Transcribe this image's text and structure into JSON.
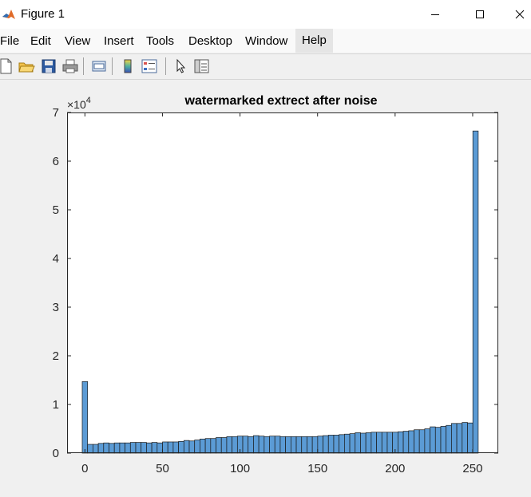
{
  "window": {
    "title": "Figure 1"
  },
  "menu": {
    "file": "File",
    "edit": "Edit",
    "view": "View",
    "insert": "Insert",
    "tools": "Tools",
    "desktop": "Desktop",
    "window": "Window",
    "help": "Help"
  },
  "colors": {
    "bar_fill": "#5b9bd5",
    "bar_edge": "#1a1a1a",
    "axes_bg": "#ffffff",
    "figure_bg": "#f0f0f0"
  },
  "chart_data": {
    "type": "bar",
    "title": "watermarked extrect after noise",
    "xlabel": "",
    "ylabel": "",
    "y_exponent_label": "×10",
    "y_exponent": "4",
    "xlim": [
      -11.5,
      266.5
    ],
    "ylim": [
      0,
      70000
    ],
    "x_ticks": [
      0,
      50,
      100,
      150,
      200,
      250
    ],
    "y_ticks": [
      0,
      10000,
      20000,
      30000,
      40000,
      50000,
      60000,
      70000
    ],
    "y_tick_labels": [
      "0",
      "1",
      "2",
      "3",
      "4",
      "5",
      "6",
      "7"
    ],
    "grid": false,
    "legend": "none",
    "bar_width": 3.45,
    "x": [
      0,
      3.45,
      6.9,
      10.35,
      13.8,
      17.25,
      20.7,
      24.15,
      27.6,
      31.05,
      34.5,
      37.95,
      41.4,
      44.85,
      48.3,
      51.75,
      55.2,
      58.65,
      62.1,
      65.55,
      69,
      72.45,
      75.9,
      79.35,
      82.8,
      86.25,
      89.7,
      93.15,
      96.6,
      100.05,
      103.5,
      106.95,
      110.4,
      113.85,
      117.3,
      120.75,
      124.2,
      127.65,
      131.1,
      134.55,
      138,
      141.45,
      144.9,
      148.35,
      151.8,
      155.25,
      158.7,
      162.15,
      165.6,
      169.05,
      172.5,
      175.95,
      179.4,
      182.85,
      186.3,
      189.75,
      193.2,
      196.65,
      200.1,
      203.55,
      207,
      210.45,
      213.9,
      217.35,
      220.8,
      224.25,
      227.7,
      231.15,
      234.6,
      238.05,
      241.5,
      244.95,
      248.4,
      251.85
    ],
    "values": [
      14700,
      1800,
      1800,
      2000,
      2100,
      2000,
      2100,
      2100,
      2100,
      2200,
      2200,
      2200,
      2100,
      2200,
      2100,
      2300,
      2300,
      2300,
      2400,
      2600,
      2500,
      2700,
      2900,
      3000,
      3000,
      3200,
      3200,
      3400,
      3400,
      3500,
      3500,
      3400,
      3600,
      3500,
      3400,
      3500,
      3500,
      3400,
      3400,
      3400,
      3400,
      3400,
      3400,
      3400,
      3500,
      3600,
      3700,
      3700,
      3800,
      3900,
      4000,
      4200,
      4100,
      4200,
      4300,
      4300,
      4300,
      4300,
      4300,
      4400,
      4500,
      4600,
      4800,
      4800,
      5000,
      5400,
      5300,
      5500,
      5700,
      6100,
      6100,
      6300,
      6200,
      66200
    ]
  }
}
